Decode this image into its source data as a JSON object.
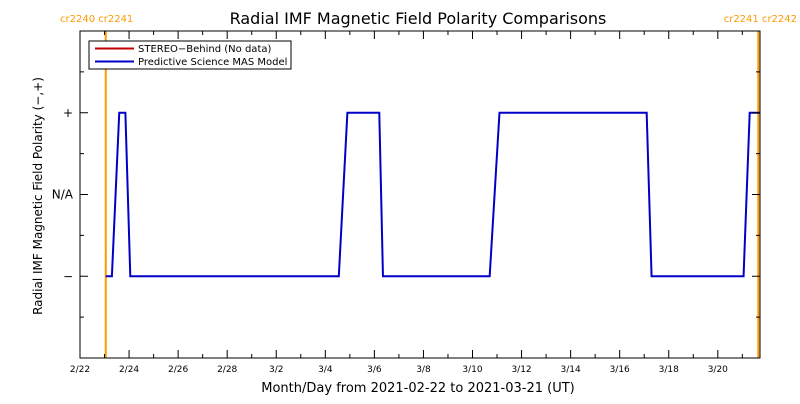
{
  "chart_data": {
    "type": "line",
    "title": "Radial IMF Magnetic Field Polarity Comparisons",
    "xlabel": "Month/Day from 2021-02-22 to 2021-03-21 (UT)",
    "ylabel": "Radial IMF Magnetic Field Polarity (−,+)",
    "xlim": [
      0,
      27.72
    ],
    "ylim": [
      -2,
      2
    ],
    "x_unit": "days since 2021-02-22 00:00 UT",
    "x_ticks": [
      {
        "x": 0,
        "label": "2/22"
      },
      {
        "x": 2,
        "label": "2/24"
      },
      {
        "x": 4,
        "label": "2/26"
      },
      {
        "x": 6,
        "label": "2/28"
      },
      {
        "x": 8,
        "label": "3/2"
      },
      {
        "x": 10,
        "label": "3/4"
      },
      {
        "x": 12,
        "label": "3/6"
      },
      {
        "x": 14,
        "label": "3/8"
      },
      {
        "x": 16,
        "label": "3/10"
      },
      {
        "x": 18,
        "label": "3/12"
      },
      {
        "x": 20,
        "label": "3/14"
      },
      {
        "x": 22,
        "label": "3/16"
      },
      {
        "x": 24,
        "label": "3/18"
      },
      {
        "x": 26,
        "label": "3/20"
      }
    ],
    "y_ticks": [
      {
        "y": 1,
        "label": "+"
      },
      {
        "y": 0,
        "label": "N/A"
      },
      {
        "y": -1,
        "label": "−"
      }
    ],
    "legend": {
      "position": "top-left",
      "entries": [
        {
          "label": "STEREO−Behind (No data)",
          "color": "#c00000"
        },
        {
          "label": "Predictive Science MAS Model",
          "color": "#0000c8"
        }
      ]
    },
    "carrington_markers": [
      {
        "x": 1.05,
        "labels": [
          "cr2240",
          "cr2241"
        ],
        "color": "#ff9900"
      },
      {
        "x": 27.65,
        "labels": [
          "cr2241",
          "cr2242"
        ],
        "color": "#ff9900"
      }
    ],
    "series": [
      {
        "name": "Predictive Science MAS Model",
        "color": "#0000c8",
        "x": [
          1.05,
          1.3,
          1.6,
          1.6,
          1.85,
          2.05,
          10.55,
          10.9,
          10.9,
          12.2,
          12.35,
          16.7,
          17.1,
          17.1,
          23.1,
          23.3,
          27.05,
          27.3,
          27.5,
          27.5,
          27.72
        ],
        "y": [
          -1,
          -1,
          1,
          1,
          1,
          -1,
          -1,
          1,
          1,
          1,
          -1,
          -1,
          1,
          1,
          1,
          -1,
          -1,
          1,
          1,
          1,
          1
        ]
      },
      {
        "name": "STEREO−Behind (No data)",
        "color": "#c00000",
        "x": [],
        "y": []
      }
    ]
  }
}
